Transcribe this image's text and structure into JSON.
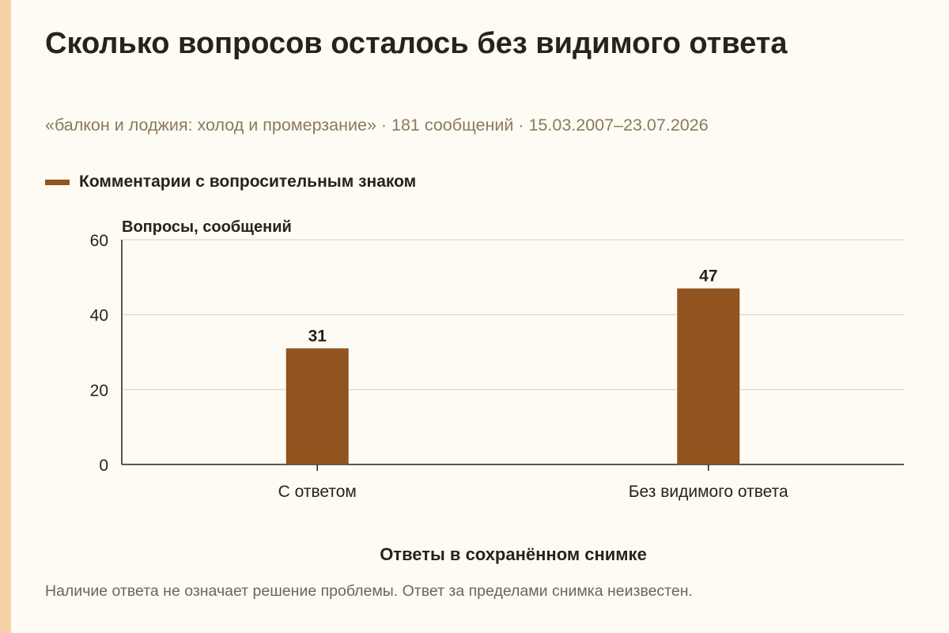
{
  "header": {
    "title": "Сколько вопросов осталось без видимого ответа",
    "subtitle": "«балкон и лоджия: холод и промерзание» · 181 сообщений · 15.03.2007–23.07.2026"
  },
  "legend": {
    "label": "Комментарии с вопросительным знаком"
  },
  "footer": {
    "note": "Наличие ответа не означает решение проблемы. Ответ за пределами снимка неизвестен."
  },
  "colors": {
    "bar": "#91541F",
    "grid": "#D8D2C4",
    "axis": "#1F1F1F",
    "background": "#FDFBF3",
    "accent_stripe": "#F5D3A4"
  },
  "chart_data": {
    "type": "bar",
    "categories": [
      "С ответом",
      "Без видимого ответа"
    ],
    "series": [
      {
        "name": "Комментарии с вопросительным знаком",
        "values": [
          31,
          47
        ]
      }
    ],
    "xlabel": "Ответы в сохранённом снимке",
    "ylabel": "Вопросы, сообщений",
    "ylim": [
      0,
      60
    ],
    "yticks": [
      0,
      20,
      40,
      60
    ],
    "grid": true,
    "legend_position": "top-left"
  }
}
